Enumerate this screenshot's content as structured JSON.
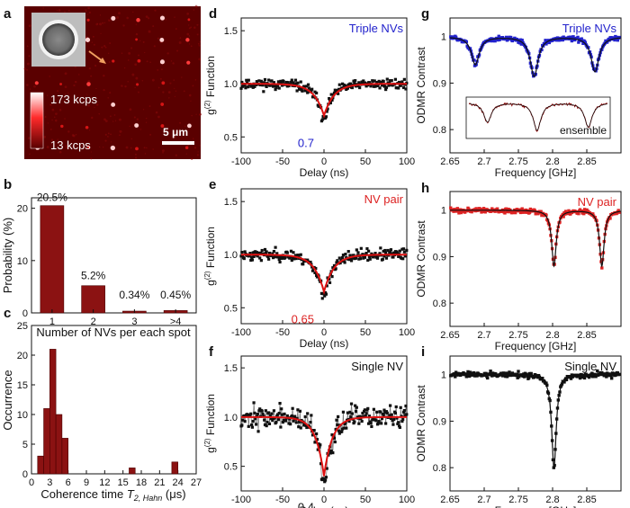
{
  "panel_letters": [
    "a",
    "b",
    "c",
    "d",
    "e",
    "f",
    "g",
    "h",
    "i"
  ],
  "colors": {
    "dark_red": "#8b1212",
    "blue": "#2222cc",
    "red": "#dd2222",
    "black": "#111111",
    "fit_red": "#dd1111"
  },
  "image_panel": {
    "colorbar_max": "173 kcps",
    "colorbar_min": "13 kcps",
    "scale_bar": "5 μm"
  },
  "chart_data": [
    {
      "id": "b",
      "type": "bar",
      "categories": [
        "1",
        "2",
        "3",
        ">4"
      ],
      "values": [
        20.5,
        5.2,
        0.34,
        0.45
      ],
      "value_labels": [
        "20.5%",
        "5.2%",
        "0.34%",
        "0.45%"
      ],
      "xlabel": "Number of NVs per each spot",
      "ylabel": "Probability (%)",
      "ylim": [
        0,
        22
      ],
      "yticks": [
        "0",
        "10",
        "20"
      ]
    },
    {
      "id": "c",
      "type": "bar",
      "x": [
        1.5,
        2.5,
        3.5,
        4.5,
        5.5,
        16.5,
        23.5
      ],
      "values": [
        3,
        11,
        21,
        10,
        6,
        1,
        2
      ],
      "xlabel_main": "Coherence time ",
      "xlabel_symbol": "T",
      "xlabel_sub": "2, Hahn",
      "xlabel_unit": " (μs)",
      "ylabel": "Occurrence",
      "xlim": [
        0,
        27
      ],
      "ylim": [
        0,
        25
      ],
      "xticks": [
        "0",
        "3",
        "6",
        "9",
        "12",
        "15",
        "18",
        "21",
        "24",
        "27"
      ],
      "yticks": [
        "0",
        "5",
        "10",
        "15",
        "20",
        "25"
      ]
    },
    {
      "id": "d",
      "type": "scatter",
      "series_color": "black",
      "fit_color": "red",
      "legend": "Triple NVs",
      "legend_color": "blue",
      "min_label": "0.7",
      "min_label_color": "blue",
      "min_value": 0.7,
      "fit_width": 12,
      "xlabel": "Delay (ns)",
      "ylabel_main": "g",
      "ylabel_sup": "(2)",
      "ylabel_rest": " Function",
      "xlim": [
        -100,
        100
      ],
      "ylim": [
        0.35,
        1.62
      ],
      "xticks": [
        "-100",
        "-50",
        "0",
        "50",
        "100"
      ],
      "yticks": [
        "0.5",
        "1.0",
        "1.5"
      ]
    },
    {
      "id": "e",
      "type": "scatter",
      "series_color": "black",
      "fit_color": "red",
      "legend": "NV pair",
      "legend_color": "red",
      "min_label": "0.65",
      "min_label_color": "red",
      "min_value": 0.65,
      "fit_width": 12,
      "xlabel": "Delay (ns)",
      "ylabel_main": "g",
      "ylabel_sup": "(2)",
      "ylabel_rest": " Function",
      "xlim": [
        -100,
        100
      ],
      "ylim": [
        0.35,
        1.62
      ],
      "xticks": [
        "-100",
        "-50",
        "0",
        "50",
        "100"
      ],
      "yticks": [
        "0.5",
        "1.0",
        "1.5"
      ]
    },
    {
      "id": "f",
      "type": "line",
      "series_color": "black",
      "fit_color": "red",
      "legend": "Single NV",
      "legend_color": "black",
      "min_label": "0.4",
      "min_label_color": "black",
      "min_value": 0.4,
      "fit_width": 10,
      "xlabel": "Delay (ns)",
      "ylabel_main": "g",
      "ylabel_sup": "(2)",
      "ylabel_rest": " Function",
      "xlim": [
        -100,
        100
      ],
      "ylim": [
        0.25,
        1.62
      ],
      "xticks": [
        "-100",
        "-50",
        "0",
        "50",
        "100"
      ],
      "yticks": [
        "0.5",
        "1.0",
        "1.5"
      ]
    },
    {
      "id": "g",
      "type": "scatter",
      "series_color": "blue",
      "fit_color": "black",
      "legend": "Triple NVs",
      "legend_color": "blue",
      "dips": [
        [
          2.687,
          0.06
        ],
        [
          2.773,
          0.085
        ],
        [
          2.862,
          0.075
        ]
      ],
      "inset_label": "ensemble",
      "xlabel": "Frequency [GHz]",
      "ylabel": "ODMR Contrast",
      "xlim": [
        2.65,
        2.9
      ],
      "ylim": [
        0.75,
        1.04
      ],
      "xticks": [
        "2.65",
        "2.7",
        "2.75",
        "2.8",
        "2.85"
      ],
      "yticks": [
        "0.8",
        "0.9",
        "1"
      ]
    },
    {
      "id": "h",
      "type": "scatter",
      "series_color": "red",
      "fit_color": "black",
      "legend": "NV pair",
      "legend_color": "red",
      "dips": [
        [
          2.802,
          0.12
        ],
        [
          2.872,
          0.12
        ]
      ],
      "xlabel": "Frequency [GHz]",
      "ylabel": "ODMR Contrast",
      "xlim": [
        2.65,
        2.9
      ],
      "ylim": [
        0.75,
        1.04
      ],
      "xticks": [
        "2.65",
        "2.7",
        "2.75",
        "2.8",
        "2.85"
      ],
      "yticks": [
        "0.8",
        "0.9",
        "1"
      ]
    },
    {
      "id": "i",
      "type": "line",
      "series_color": "black",
      "fit_color": "black",
      "legend": "Single NV",
      "legend_color": "black",
      "dips": [
        [
          2.802,
          0.2
        ]
      ],
      "xlabel": "Frequency [GHz]",
      "ylabel": "ODMR Contrast",
      "xlim": [
        2.65,
        2.9
      ],
      "ylim": [
        0.75,
        1.04
      ],
      "xticks": [
        "2.65",
        "2.7",
        "2.75",
        "2.8",
        "2.85"
      ],
      "yticks": [
        "0.8",
        "0.9",
        "1"
      ]
    }
  ]
}
